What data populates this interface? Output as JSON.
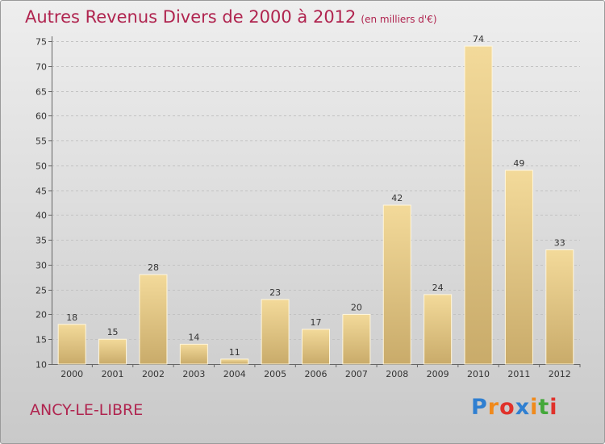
{
  "chart_data": {
    "type": "bar",
    "title": "Autres Revenus Divers de 2000 à 2012",
    "unit": "(en milliers d'€)",
    "categories": [
      "2000",
      "2001",
      "2002",
      "2003",
      "2004",
      "2005",
      "2006",
      "2007",
      "2008",
      "2009",
      "2010",
      "2011",
      "2012"
    ],
    "values": [
      18,
      15,
      28,
      14,
      11,
      23,
      17,
      20,
      42,
      24,
      74,
      49,
      33
    ],
    "value_labels": [
      "18",
      "15",
      "28",
      "14",
      "11",
      "23",
      "17",
      "20",
      "42",
      "24",
      "74",
      "49",
      "33"
    ],
    "ylim": [
      10,
      75
    ],
    "yticks": [
      10,
      15,
      20,
      25,
      30,
      35,
      40,
      45,
      50,
      55,
      60,
      65,
      70,
      75
    ],
    "ytick_labels": [
      "10",
      "15",
      "20",
      "25",
      "30",
      "35",
      "40",
      "45",
      "50",
      "55",
      "60",
      "65",
      "70",
      "75"
    ],
    "grid": true,
    "legend": "none"
  },
  "footer": {
    "place_name": "ANCY-LE-LIBRE",
    "logo_letters": [
      "P",
      "r",
      "o",
      "x",
      "i",
      "t",
      "i"
    ]
  },
  "colors": {
    "title": "#b0244f",
    "bar_light": "#f3da9a",
    "bar_dark": "#c9ab6a",
    "logo_letters": [
      "#2f7fd1",
      "#f08a1c",
      "#e0322b",
      "#2f7fd1",
      "#f08a1c",
      "#44a83a",
      "#e0322b"
    ]
  }
}
